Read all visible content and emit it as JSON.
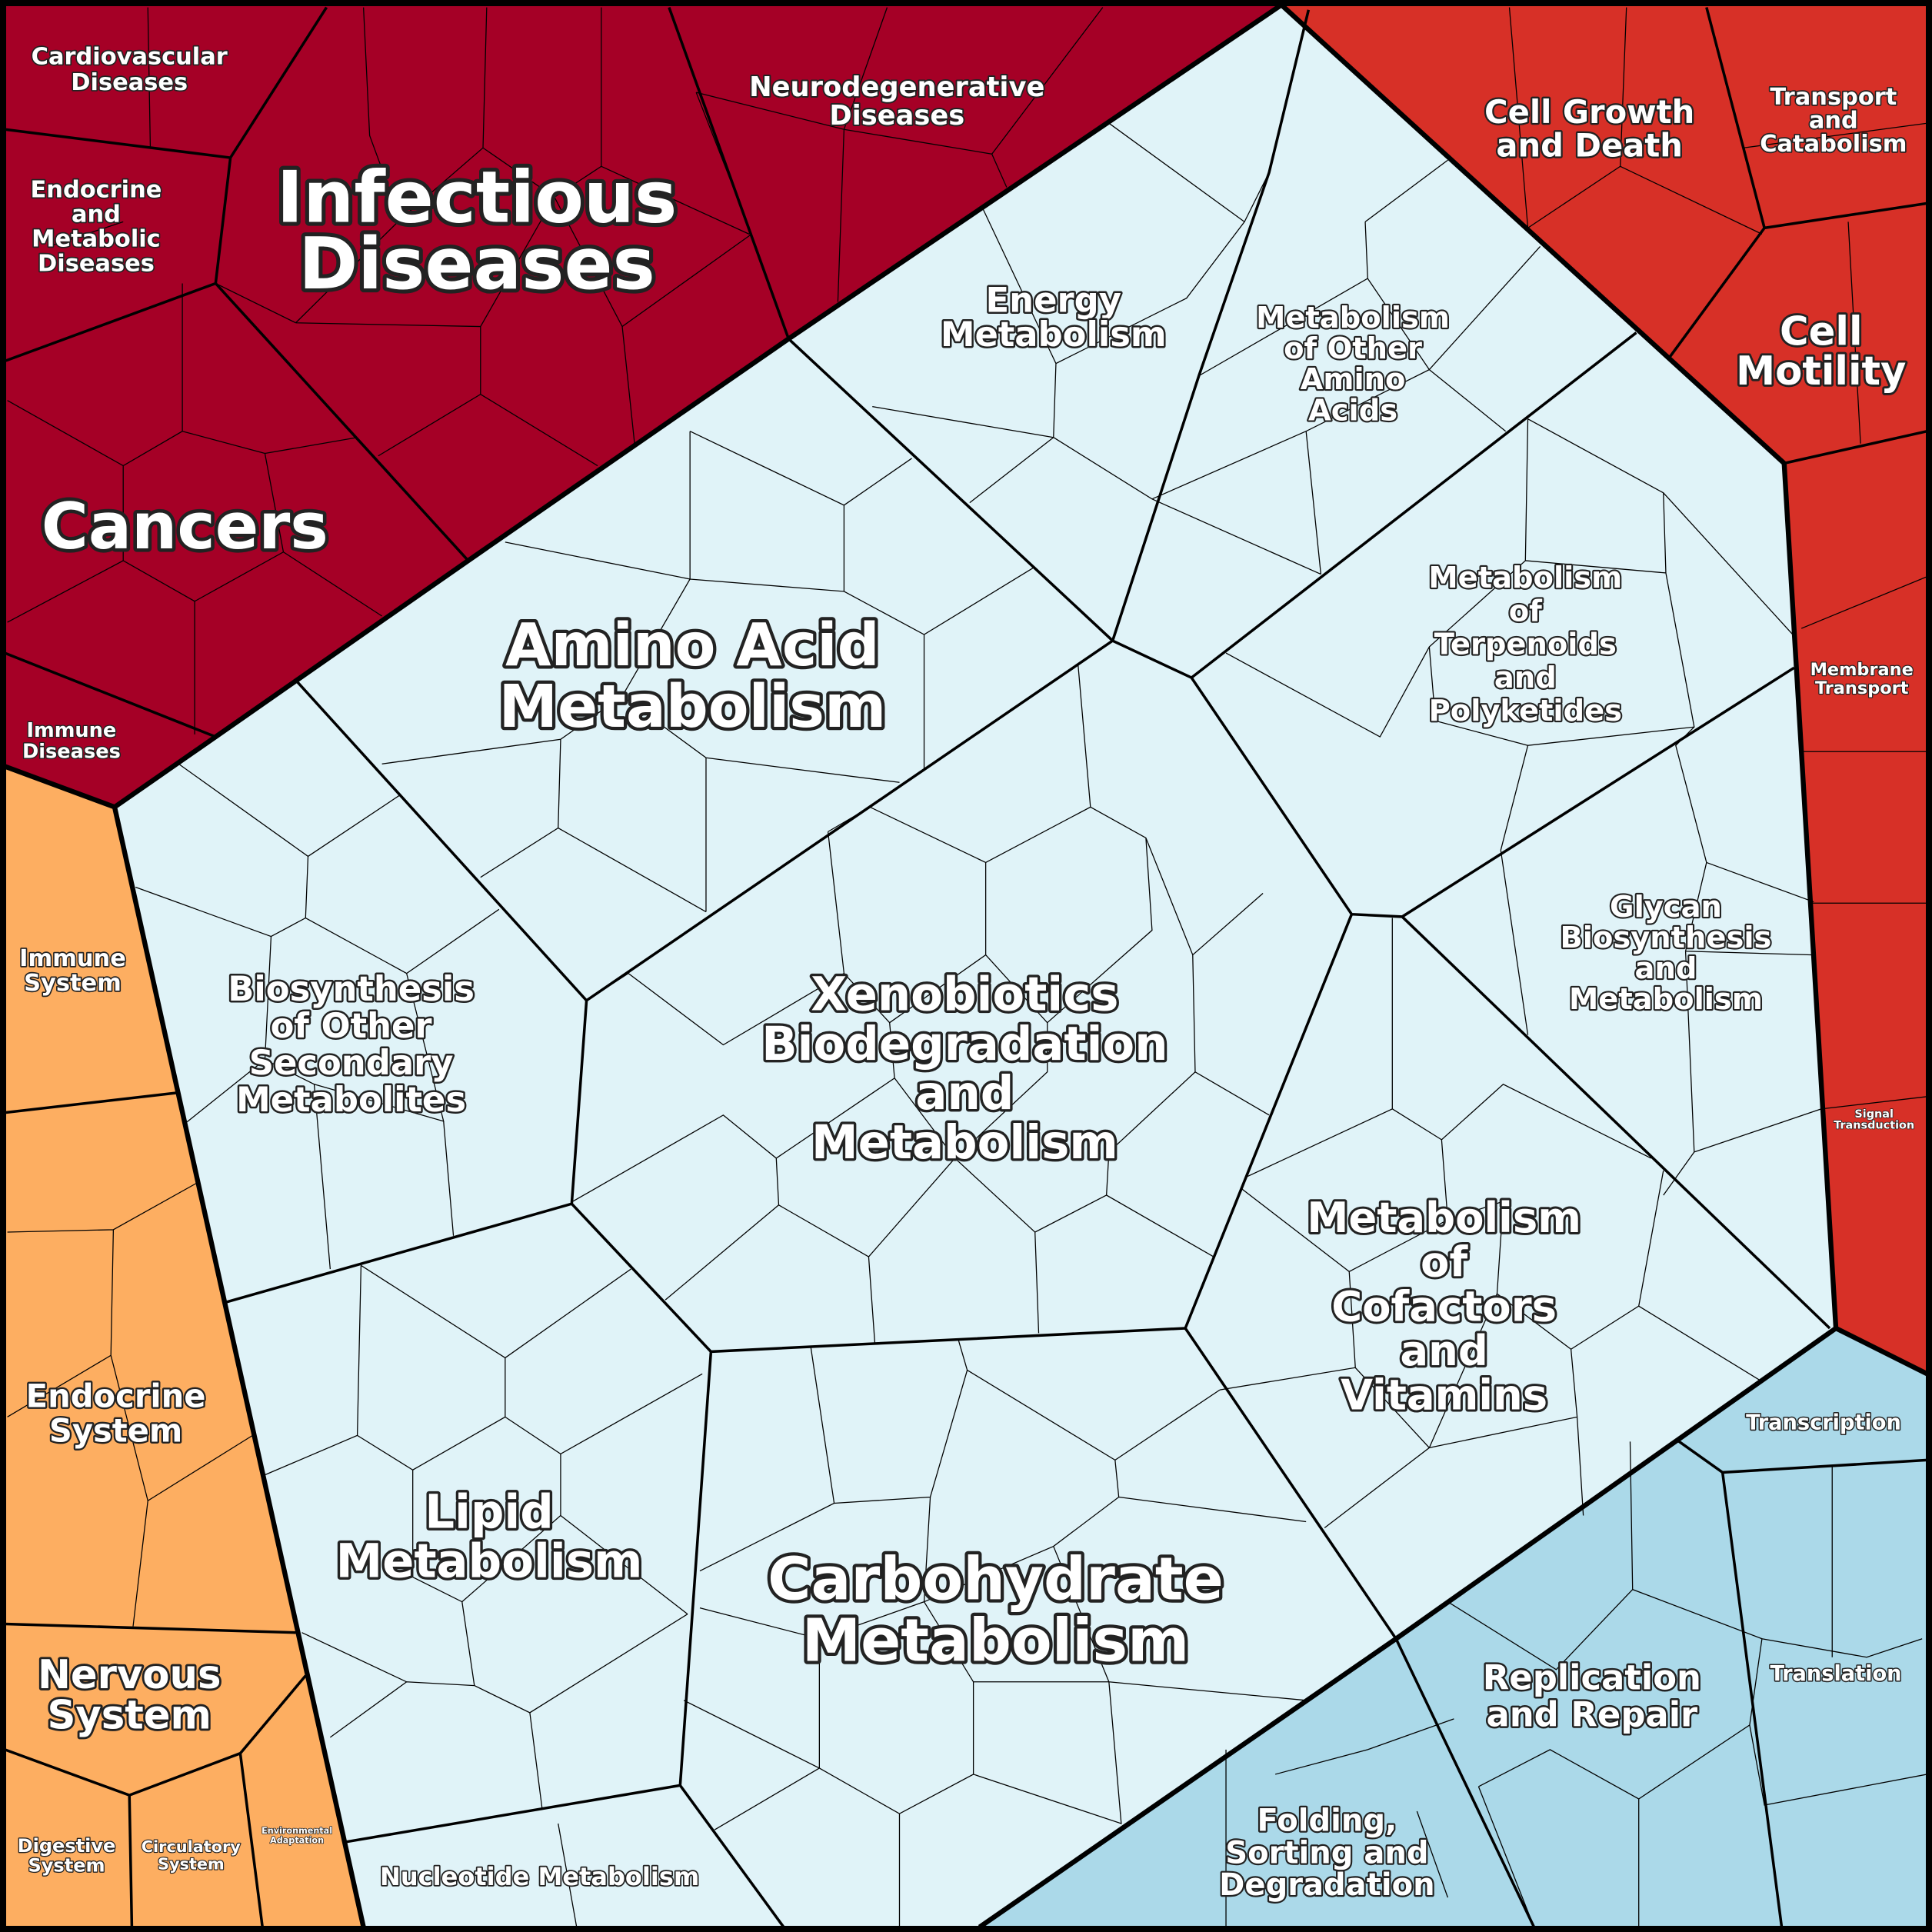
{
  "colors": {
    "human_diseases": "#a50026",
    "cellular_processes": "#d73027",
    "organismal_systems": "#fdae61",
    "metabolism": "#e0f3f8",
    "genetic_information_processing": "#abd9e9",
    "border": "#000000",
    "label": "#ffffff"
  },
  "labels": [
    {
      "id": "infectious",
      "lines": [
        "Infectious",
        "Diseases"
      ]
    },
    {
      "id": "cancers",
      "lines": [
        "Cancers"
      ]
    },
    {
      "id": "cardio",
      "lines": [
        "Cardiovascular",
        "Diseases"
      ]
    },
    {
      "id": "endometab",
      "lines": [
        "Endocrine",
        "and",
        "Metabolic",
        "Diseases"
      ]
    },
    {
      "id": "neuro",
      "lines": [
        "Neurodegenerative",
        "Diseases"
      ]
    },
    {
      "id": "immunedis",
      "lines": [
        "Immune",
        "Diseases"
      ]
    },
    {
      "id": "cellgrowth",
      "lines": [
        "Cell Growth",
        "and Death"
      ]
    },
    {
      "id": "transport",
      "lines": [
        "Transport",
        "and",
        "Catabolism"
      ]
    },
    {
      "id": "motility",
      "lines": [
        "Cell",
        "Motility"
      ]
    },
    {
      "id": "membrane",
      "lines": [
        "Membrane",
        "Transport"
      ]
    },
    {
      "id": "signal",
      "lines": [
        "Signal",
        "Transduction"
      ]
    },
    {
      "id": "energy",
      "lines": [
        "Energy",
        "Metabolism"
      ]
    },
    {
      "id": "otheramino",
      "lines": [
        "Metabolism",
        "of Other",
        "Amino",
        "Acids"
      ]
    },
    {
      "id": "amino",
      "lines": [
        "Amino Acid",
        "Metabolism"
      ]
    },
    {
      "id": "terpenoids",
      "lines": [
        "Metabolism",
        "of",
        "Terpenoids",
        "and",
        "Polyketides"
      ]
    },
    {
      "id": "glycan",
      "lines": [
        "Glycan",
        "Biosynthesis",
        "and",
        "Metabolism"
      ]
    },
    {
      "id": "biosynth",
      "lines": [
        "Biosynthesis",
        "of Other",
        "Secondary",
        "Metabolites"
      ]
    },
    {
      "id": "xeno",
      "lines": [
        "Xenobiotics",
        "Biodegradation",
        "and",
        "Metabolism"
      ]
    },
    {
      "id": "cofactors",
      "lines": [
        "Metabolism",
        "of",
        "Cofactors",
        "and",
        "Vitamins"
      ]
    },
    {
      "id": "lipid",
      "lines": [
        "Lipid",
        "Metabolism"
      ]
    },
    {
      "id": "carbo",
      "lines": [
        "Carbohydrate",
        "Metabolism"
      ]
    },
    {
      "id": "nucleotide",
      "lines": [
        "Nucleotide Metabolism"
      ]
    },
    {
      "id": "transcription",
      "lines": [
        "Transcription"
      ]
    },
    {
      "id": "translation",
      "lines": [
        "Translation"
      ]
    },
    {
      "id": "replication",
      "lines": [
        "Replication",
        "and Repair"
      ]
    },
    {
      "id": "folding",
      "lines": [
        "Folding,",
        "Sorting and",
        "Degradation"
      ]
    },
    {
      "id": "immunesys",
      "lines": [
        "Immune",
        "System"
      ]
    },
    {
      "id": "endosys",
      "lines": [
        "Endocrine",
        "System"
      ]
    },
    {
      "id": "nervous",
      "lines": [
        "Nervous",
        "System"
      ]
    },
    {
      "id": "digestive",
      "lines": [
        "Digestive",
        "System"
      ]
    },
    {
      "id": "circulatory",
      "lines": [
        "Circulatory",
        "System"
      ]
    },
    {
      "id": "environmental",
      "lines": [
        "Environmental",
        "Adaptation"
      ]
    }
  ]
}
